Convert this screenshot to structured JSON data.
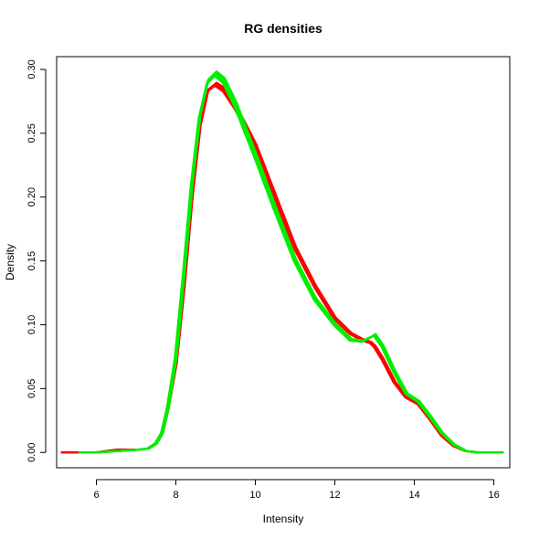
{
  "chart_data": {
    "type": "line",
    "title": "RG densities",
    "xlabel": "Intensity",
    "ylabel": "Density",
    "xlim": [
      5.0,
      16.4
    ],
    "ylim": [
      -0.012,
      0.31
    ],
    "xticks": [
      6,
      8,
      10,
      12,
      14,
      16
    ],
    "xtick_labels": [
      "6",
      "8",
      "10",
      "12",
      "14",
      "16"
    ],
    "yticks": [
      0.0,
      0.05,
      0.1,
      0.15,
      0.2,
      0.25,
      0.3
    ],
    "ytick_labels": [
      "0.00",
      "0.05",
      "0.10",
      "0.15",
      "0.20",
      "0.25",
      "0.30"
    ],
    "grid": false,
    "series": [
      {
        "color": "#ff0000",
        "width": 2.2,
        "copies": 10,
        "x": [
          5.15,
          5.5,
          6.0,
          6.5,
          7.0,
          7.3,
          7.5,
          7.65,
          7.8,
          8.0,
          8.2,
          8.4,
          8.6,
          8.8,
          9.0,
          9.2,
          9.5,
          10.0,
          10.5,
          11.0,
          11.5,
          12.0,
          12.4,
          12.7,
          12.9,
          13.0,
          13.2,
          13.5,
          13.8,
          14.1,
          14.4,
          14.7,
          15.0,
          15.3,
          15.6,
          16.0,
          16.2
        ],
        "y": [
          0.0,
          0.0,
          0.0,
          0.002,
          0.002,
          0.003,
          0.007,
          0.015,
          0.035,
          0.07,
          0.13,
          0.2,
          0.255,
          0.283,
          0.288,
          0.284,
          0.27,
          0.24,
          0.2,
          0.16,
          0.13,
          0.105,
          0.093,
          0.088,
          0.086,
          0.083,
          0.073,
          0.055,
          0.043,
          0.038,
          0.026,
          0.013,
          0.005,
          0.001,
          0.0,
          0.0,
          0.0
        ],
        "band": 0.006
      },
      {
        "color": "#00ee00",
        "width": 2.2,
        "copies": 14,
        "x": [
          5.6,
          6.0,
          6.5,
          7.0,
          7.3,
          7.5,
          7.65,
          7.8,
          8.0,
          8.2,
          8.4,
          8.6,
          8.8,
          9.0,
          9.2,
          9.5,
          10.0,
          10.5,
          11.0,
          11.5,
          12.0,
          12.4,
          12.7,
          12.9,
          13.0,
          13.2,
          13.5,
          13.8,
          14.1,
          14.4,
          14.7,
          15.0,
          15.3,
          15.6,
          16.0,
          16.2
        ],
        "y": [
          0.0,
          0.0,
          0.001,
          0.002,
          0.003,
          0.007,
          0.015,
          0.035,
          0.075,
          0.14,
          0.21,
          0.263,
          0.29,
          0.296,
          0.291,
          0.272,
          0.232,
          0.19,
          0.15,
          0.12,
          0.1,
          0.088,
          0.087,
          0.09,
          0.092,
          0.083,
          0.063,
          0.046,
          0.04,
          0.028,
          0.015,
          0.006,
          0.001,
          0.0,
          0.0,
          0.0
        ],
        "band": 0.009
      }
    ]
  }
}
